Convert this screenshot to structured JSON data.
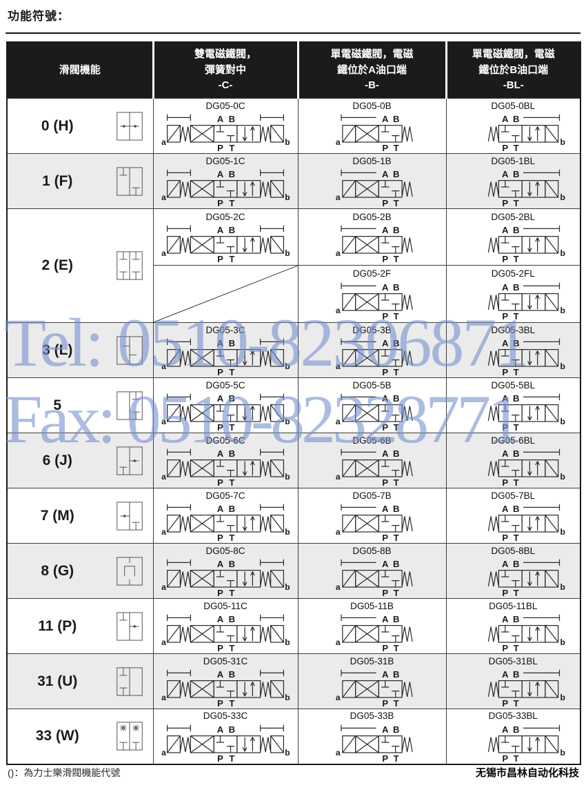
{
  "page": {
    "title": "功能符號："
  },
  "watermark": {
    "line1": "Tel: 0510-82306871",
    "line2": "Fax: 0510-82328771",
    "color": "#7490ce"
  },
  "footer": {
    "note": "()：為力士樂滑閥機能代號",
    "company": "无锡市昌林自动化科技"
  },
  "colors": {
    "header_bg": "#1b1b1b",
    "header_text": "#ffffff",
    "row_shade": "#ebebeb",
    "border": "#3c3c3c"
  },
  "valve_labels": {
    "portA": "A",
    "portB": "B",
    "portP": "P",
    "portT": "T",
    "sideA": "a",
    "sideB": "b"
  },
  "table": {
    "columns": [
      {
        "label": "滑閥機能"
      },
      {
        "line1": "雙電磁鐵閥，",
        "line2": "彈簧對中",
        "code": "-C-"
      },
      {
        "line1": "單電磁鐵閥，電磁",
        "line2": "鐵位於A油口端",
        "code": "-B-"
      },
      {
        "line1": "單電磁鐵閥，電磁",
        "line2": "鐵位於B油口端",
        "code": "-BL-"
      }
    ],
    "rows": [
      {
        "function": "0 (H)",
        "spool": "h",
        "shaded": false,
        "cells": [
          {
            "model": "DG05-0C",
            "type": "C"
          },
          {
            "model": "DG05-0B",
            "type": "B"
          },
          {
            "model": "DG05-0BL",
            "type": "BL"
          }
        ]
      },
      {
        "function": "1 (F)",
        "spool": "f",
        "shaded": true,
        "cells": [
          {
            "model": "DG05-1C",
            "type": "C"
          },
          {
            "model": "DG05-1B",
            "type": "B"
          },
          {
            "model": "DG05-1BL",
            "type": "BL"
          }
        ]
      },
      {
        "function": "2 (E)",
        "spool": "e",
        "shaded": false,
        "sub_rows": [
          [
            {
              "model": "DG05-2C",
              "type": "C"
            },
            {
              "model": "DG05-2B",
              "type": "B"
            },
            {
              "model": "DG05-2BL",
              "type": "BL"
            }
          ],
          [
            null,
            {
              "model": "DG05-2F",
              "type": "B"
            },
            {
              "model": "DG05-2FL",
              "type": "BL"
            }
          ]
        ]
      },
      {
        "function": "3 (L)",
        "spool": "l",
        "shaded": true,
        "cells": [
          {
            "model": "DG05-3C",
            "type": "C"
          },
          {
            "model": "DG05-3B",
            "type": "B"
          },
          {
            "model": "DG05-3BL",
            "type": "BL"
          }
        ]
      },
      {
        "function": "5",
        "spool": "five",
        "shaded": false,
        "cells": [
          {
            "model": "DG05-5C",
            "type": "C"
          },
          {
            "model": "DG05-5B",
            "type": "B"
          },
          {
            "model": "DG05-5BL",
            "type": "BL"
          }
        ]
      },
      {
        "function": "6 (J)",
        "spool": "j",
        "shaded": true,
        "cells": [
          {
            "model": "DG05-6C",
            "type": "C"
          },
          {
            "model": "DG05-6B",
            "type": "B"
          },
          {
            "model": "DG05-6BL",
            "type": "BL"
          }
        ]
      },
      {
        "function": "7 (M)",
        "spool": "m",
        "shaded": false,
        "cells": [
          {
            "model": "DG05-7C",
            "type": "C"
          },
          {
            "model": "DG05-7B",
            "type": "B"
          },
          {
            "model": "DG05-7BL",
            "type": "BL"
          }
        ]
      },
      {
        "function": "8 (G)",
        "spool": "g",
        "shaded": true,
        "cells": [
          {
            "model": "DG05-8C",
            "type": "C"
          },
          {
            "model": "DG05-8B",
            "type": "B"
          },
          {
            "model": "DG05-8BL",
            "type": "BL"
          }
        ]
      },
      {
        "function": "11 (P)",
        "spool": "p",
        "shaded": false,
        "cells": [
          {
            "model": "DG05-11C",
            "type": "C"
          },
          {
            "model": "DG05-11B",
            "type": "B"
          },
          {
            "model": "DG05-11BL",
            "type": "BL"
          }
        ]
      },
      {
        "function": "31 (U)",
        "spool": "u",
        "shaded": true,
        "cells": [
          {
            "model": "DG05-31C",
            "type": "C"
          },
          {
            "model": "DG05-31B",
            "type": "B"
          },
          {
            "model": "DG05-31BL",
            "type": "BL"
          }
        ]
      },
      {
        "function": "33 (W)",
        "spool": "w",
        "shaded": false,
        "cells": [
          {
            "model": "DG05-33C",
            "type": "C"
          },
          {
            "model": "DG05-33B",
            "type": "B"
          },
          {
            "model": "DG05-33BL",
            "type": "BL"
          }
        ]
      }
    ]
  }
}
